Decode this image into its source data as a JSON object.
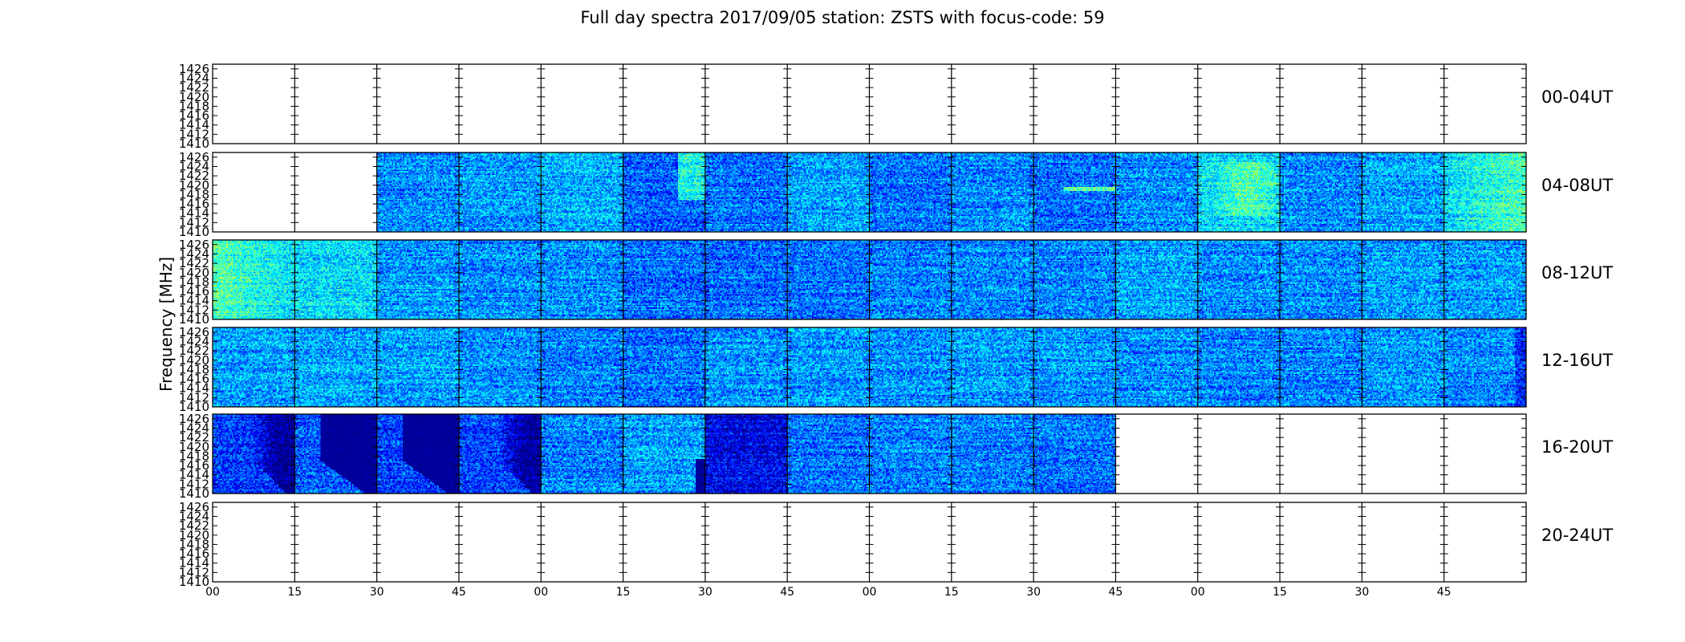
{
  "chart_data": {
    "type": "heatmap",
    "title": "Full day spectra 2017/09/05 station: ZSTS with focus-code: 59",
    "ylabel": "Frequency [MHz]",
    "xlabel": "",
    "yticks": [
      "1410",
      "1412",
      "1414",
      "1416",
      "1418",
      "1420",
      "1422",
      "1424",
      "1426"
    ],
    "ylim": [
      1410,
      1427
    ],
    "xtick_labels": [
      "00",
      "15",
      "30",
      "45",
      "00",
      "15",
      "30",
      "45",
      "00",
      "15",
      "30",
      "45",
      "00",
      "15",
      "30",
      "45"
    ],
    "minutes_per_panel": 15,
    "panels_per_row": 16,
    "colormap": [
      "#00007f",
      "#0000ff",
      "#007fff",
      "#00ffff",
      "#7fff7f",
      "#ffff00"
    ],
    "rows": [
      {
        "label": "00-04UT",
        "panels": [
          {
            "data": false
          },
          {
            "data": false
          },
          {
            "data": false
          },
          {
            "data": false
          },
          {
            "data": false
          },
          {
            "data": false
          },
          {
            "data": false
          },
          {
            "data": false
          },
          {
            "data": false
          },
          {
            "data": false
          },
          {
            "data": false
          },
          {
            "data": false
          },
          {
            "data": false
          },
          {
            "data": false
          },
          {
            "data": false
          },
          {
            "data": false
          }
        ]
      },
      {
        "label": "04-08UT",
        "panels": [
          {
            "data": false
          },
          {
            "data": false
          },
          {
            "data": true,
            "level": 0.42
          },
          {
            "data": true,
            "level": 0.44
          },
          {
            "data": true,
            "level": 0.47
          },
          {
            "data": true,
            "level": 0.35,
            "feature": "bright-block"
          },
          {
            "data": true,
            "level": 0.38
          },
          {
            "data": true,
            "level": 0.46
          },
          {
            "data": true,
            "level": 0.38
          },
          {
            "data": true,
            "level": 0.42
          },
          {
            "data": true,
            "level": 0.36,
            "feature": "line-1419"
          },
          {
            "data": true,
            "level": 0.42
          },
          {
            "data": true,
            "level": 0.55,
            "feature": "bright-center"
          },
          {
            "data": true,
            "level": 0.42
          },
          {
            "data": true,
            "level": 0.46
          },
          {
            "data": true,
            "level": 0.55,
            "feature": "bright-right"
          }
        ]
      },
      {
        "label": "08-12UT",
        "panels": [
          {
            "data": true,
            "level": 0.55,
            "feature": "bright-left"
          },
          {
            "data": true,
            "level": 0.55
          },
          {
            "data": true,
            "level": 0.44
          },
          {
            "data": true,
            "level": 0.42
          },
          {
            "data": true,
            "level": 0.42
          },
          {
            "data": true,
            "level": 0.38
          },
          {
            "data": true,
            "level": 0.36
          },
          {
            "data": true,
            "level": 0.38
          },
          {
            "data": true,
            "level": 0.4
          },
          {
            "data": true,
            "level": 0.42
          },
          {
            "data": true,
            "level": 0.4
          },
          {
            "data": true,
            "level": 0.46
          },
          {
            "data": true,
            "level": 0.42
          },
          {
            "data": true,
            "level": 0.42
          },
          {
            "data": true,
            "level": 0.44
          },
          {
            "data": true,
            "level": 0.44
          }
        ]
      },
      {
        "label": "12-16UT",
        "panels": [
          {
            "data": true,
            "level": 0.44
          },
          {
            "data": true,
            "level": 0.46
          },
          {
            "data": true,
            "level": 0.46
          },
          {
            "data": true,
            "level": 0.42
          },
          {
            "data": true,
            "level": 0.4
          },
          {
            "data": true,
            "level": 0.38
          },
          {
            "data": true,
            "level": 0.44
          },
          {
            "data": true,
            "level": 0.44
          },
          {
            "data": true,
            "level": 0.42
          },
          {
            "data": true,
            "level": 0.44
          },
          {
            "data": true,
            "level": 0.44
          },
          {
            "data": true,
            "level": 0.42
          },
          {
            "data": true,
            "level": 0.4
          },
          {
            "data": true,
            "level": 0.4
          },
          {
            "data": true,
            "level": 0.44
          },
          {
            "data": true,
            "level": 0.42,
            "feature": "dark-right"
          }
        ]
      },
      {
        "label": "16-20UT",
        "panels": [
          {
            "data": true,
            "level": 0.28,
            "feature": "dark-top-right"
          },
          {
            "data": true,
            "level": 0.34,
            "feature": "dark-triangle"
          },
          {
            "data": true,
            "level": 0.3,
            "feature": "dark-triangle"
          },
          {
            "data": true,
            "level": 0.3,
            "feature": "dark-top-right"
          },
          {
            "data": true,
            "level": 0.4
          },
          {
            "data": true,
            "level": 0.46,
            "feature": "dark-edge-right"
          },
          {
            "data": true,
            "level": 0.18
          },
          {
            "data": true,
            "level": 0.38
          },
          {
            "data": true,
            "level": 0.4
          },
          {
            "data": true,
            "level": 0.4
          },
          {
            "data": true,
            "level": 0.38
          },
          {
            "data": false
          },
          {
            "data": false
          },
          {
            "data": false
          },
          {
            "data": false
          },
          {
            "data": false
          }
        ]
      },
      {
        "label": "20-24UT",
        "panels": [
          {
            "data": false
          },
          {
            "data": false
          },
          {
            "data": false
          },
          {
            "data": false
          },
          {
            "data": false
          },
          {
            "data": false
          },
          {
            "data": false
          },
          {
            "data": false
          },
          {
            "data": false
          },
          {
            "data": false
          },
          {
            "data": false
          },
          {
            "data": false
          },
          {
            "data": false
          },
          {
            "data": false
          },
          {
            "data": false
          },
          {
            "data": false
          }
        ]
      }
    ]
  }
}
